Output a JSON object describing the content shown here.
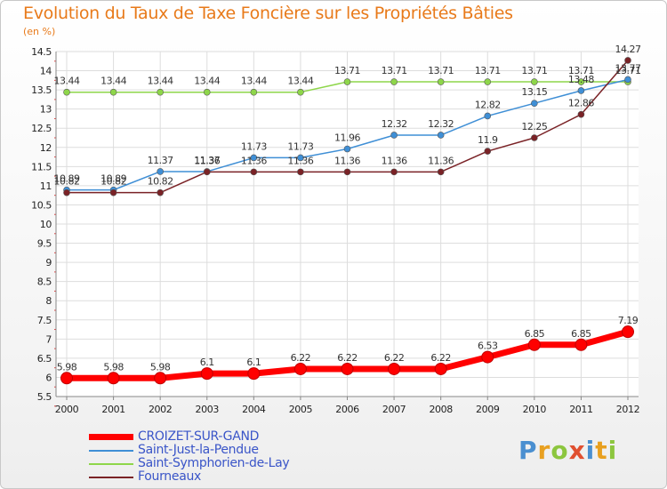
{
  "chart_data": {
    "type": "line",
    "title": "Evolution du Taux de Taxe Foncière sur les Propriétés Bâties",
    "subtitle": "(en %)",
    "xlabel": "",
    "ylabel": "(en %)",
    "x": [
      "2000",
      "2001",
      "2002",
      "2003",
      "2004",
      "2005",
      "2006",
      "2007",
      "2008",
      "2009",
      "2010",
      "2011",
      "2012"
    ],
    "ylim": [
      5.5,
      14.5
    ],
    "yticks": [
      "5.5",
      "6",
      "6.5",
      "7",
      "7.5",
      "8",
      "8.5",
      "9",
      "9.5",
      "10",
      "10.5",
      "11",
      "11.5",
      "12",
      "12.5",
      "13",
      "13.5",
      "14",
      "14.5"
    ],
    "grid": true,
    "legend_position": "bottom-left",
    "series": [
      {
        "name": "CROIZET-SUR-GAND",
        "color": "#ff0000",
        "values": [
          5.98,
          5.98,
          5.98,
          6.1,
          6.1,
          6.22,
          6.22,
          6.22,
          6.22,
          6.53,
          6.85,
          6.85,
          7.19
        ],
        "labels": [
          "5.98",
          "5.98",
          "5.98",
          "6.1",
          "6.1",
          "6.22",
          "6.22",
          "6.22",
          "6.22",
          "6.53",
          "6.85",
          "6.85",
          "7.19"
        ]
      },
      {
        "name": "Saint-Just-la-Pendue",
        "color": "#3f8fd6",
        "values": [
          10.89,
          10.89,
          11.37,
          11.37,
          11.73,
          11.73,
          11.96,
          12.32,
          12.32,
          12.82,
          13.15,
          13.48,
          13.77
        ],
        "labels": [
          "10.89",
          "10.89",
          "11.37",
          "11.37",
          "11.73",
          "11.73",
          "11.96",
          "12.32",
          "12.32",
          "12.82",
          "13.15",
          "13.48",
          "13.77"
        ]
      },
      {
        "name": "Saint-Symphorien-de-Lay",
        "color": "#8ed64a",
        "values": [
          13.44,
          13.44,
          13.44,
          13.44,
          13.44,
          13.44,
          13.71,
          13.71,
          13.71,
          13.71,
          13.71,
          13.71,
          13.71
        ],
        "labels": [
          "13.44",
          "13.44",
          "13.44",
          "13.44",
          "13.44",
          "13.44",
          "13.71",
          "13.71",
          "13.71",
          "13.71",
          "13.71",
          "13.71",
          "13.71"
        ]
      },
      {
        "name": "Fourneaux",
        "color": "#7a2226",
        "values": [
          10.82,
          10.82,
          10.82,
          11.36,
          11.36,
          11.36,
          11.36,
          11.36,
          11.36,
          11.9,
          12.25,
          12.86,
          14.27
        ],
        "labels": [
          "10.82",
          "10.82",
          "10.82",
          "11.36",
          "11.36",
          "11.36",
          "11.36",
          "11.36",
          "11.36",
          "11.9",
          "12.25",
          "12.86",
          "14.27"
        ]
      }
    ]
  },
  "logo": {
    "letters": [
      {
        "ch": "P",
        "color": "#4a8fd0"
      },
      {
        "ch": "r",
        "color": "#e8a020"
      },
      {
        "ch": "o",
        "color": "#8cc63e"
      },
      {
        "ch": "x",
        "color": "#e05030"
      },
      {
        "ch": "i",
        "color": "#4a8fd0"
      },
      {
        "ch": "t",
        "color": "#e8a020"
      },
      {
        "ch": "i",
        "color": "#8cc63e"
      }
    ]
  }
}
